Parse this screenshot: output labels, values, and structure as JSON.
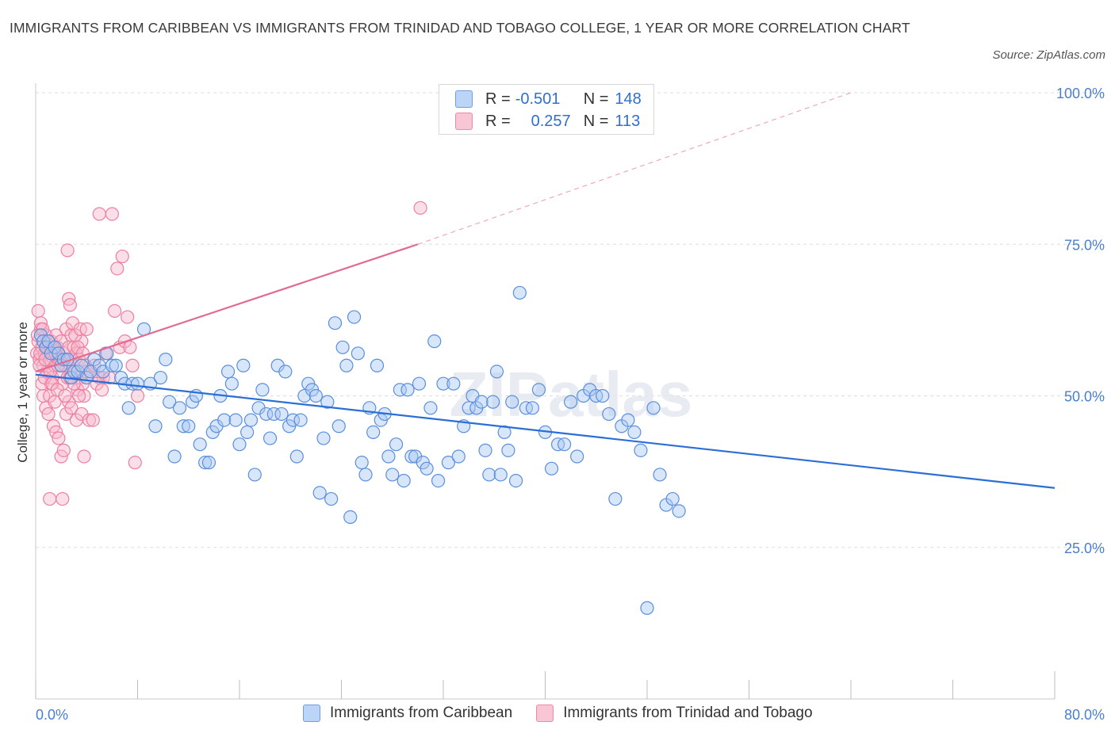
{
  "title": "IMMIGRANTS FROM CARIBBEAN VS IMMIGRANTS FROM TRINIDAD AND TOBAGO COLLEGE, 1 YEAR OR MORE CORRELATION CHART",
  "source": "Source: ZipAtlas.com",
  "watermark": "ZIPatlas",
  "legend": {
    "r_label": "R =",
    "n_label": "N =",
    "rows": [
      {
        "r": "-0.501",
        "n": "148",
        "fill": "#bcd4f6",
        "stroke": "#6c9ee6"
      },
      {
        "r": "0.257",
        "n": "113",
        "fill": "#f9c6d6",
        "stroke": "#ee8aa8"
      }
    ]
  },
  "colors": {
    "blue_fill": "#a9c8f2",
    "blue_stroke": "#5b8fdc",
    "blue_line": "#2a6fd6",
    "pink_fill": "#f7b8cb",
    "pink_stroke": "#ec7fa0",
    "pink_line": "#e36a93",
    "grid": "#dedede",
    "tick_label": "#4a7fd0"
  },
  "chart_data": {
    "type": "scatter",
    "title": "IMMIGRANTS FROM CARIBBEAN VS IMMIGRANTS FROM TRINIDAD AND TOBAGO COLLEGE, 1 YEAR OR MORE CORRELATION CHART",
    "xlabel": "",
    "ylabel": "College, 1 year or more",
    "xlim": [
      0,
      80
    ],
    "ylim": [
      0,
      100
    ],
    "x_tick_labels": [
      "0.0%",
      "80.0%"
    ],
    "y_tick_labels": [
      "100.0%",
      "75.0%",
      "50.0%",
      "25.0%"
    ],
    "y_ticks": [
      100,
      75,
      50,
      25
    ],
    "grid": true,
    "legend_position": "top-center",
    "series": [
      {
        "name": "Immigrants from Caribbean",
        "color": "blue",
        "R": -0.501,
        "N": 148,
        "trend": {
          "x": [
            0,
            80
          ],
          "y": [
            53.5,
            34.8
          ]
        },
        "points": [
          [
            0.4,
            60
          ],
          [
            0.6,
            59
          ],
          [
            0.8,
            58
          ],
          [
            1.0,
            59
          ],
          [
            1.2,
            57
          ],
          [
            1.5,
            58
          ],
          [
            1.8,
            57
          ],
          [
            2.0,
            55
          ],
          [
            2.2,
            56
          ],
          [
            2.5,
            56
          ],
          [
            2.8,
            53
          ],
          [
            3.0,
            54
          ],
          [
            3.3,
            54
          ],
          [
            3.6,
            55
          ],
          [
            4.0,
            53
          ],
          [
            4.3,
            54
          ],
          [
            4.6,
            56
          ],
          [
            5.0,
            55
          ],
          [
            5.3,
            54
          ],
          [
            5.6,
            57
          ],
          [
            6.0,
            55
          ],
          [
            6.3,
            55
          ],
          [
            6.7,
            53
          ],
          [
            7.0,
            52
          ],
          [
            7.3,
            48
          ],
          [
            7.6,
            52
          ],
          [
            8.0,
            52
          ],
          [
            8.5,
            61
          ],
          [
            9.0,
            52
          ],
          [
            9.4,
            45
          ],
          [
            9.8,
            53
          ],
          [
            10.2,
            56
          ],
          [
            10.5,
            49
          ],
          [
            10.9,
            40
          ],
          [
            11.3,
            48
          ],
          [
            11.6,
            45
          ],
          [
            12.0,
            45
          ],
          [
            12.3,
            49
          ],
          [
            12.6,
            50
          ],
          [
            12.9,
            42
          ],
          [
            13.3,
            39
          ],
          [
            13.6,
            39
          ],
          [
            13.9,
            44
          ],
          [
            14.2,
            45
          ],
          [
            14.5,
            50
          ],
          [
            14.8,
            46
          ],
          [
            15.1,
            54
          ],
          [
            15.4,
            52
          ],
          [
            15.7,
            46
          ],
          [
            16.0,
            42
          ],
          [
            16.3,
            55
          ],
          [
            16.6,
            44
          ],
          [
            16.9,
            46
          ],
          [
            17.2,
            37
          ],
          [
            17.5,
            48
          ],
          [
            17.8,
            51
          ],
          [
            18.1,
            47
          ],
          [
            18.4,
            43
          ],
          [
            18.7,
            47
          ],
          [
            19.0,
            55
          ],
          [
            19.3,
            47
          ],
          [
            19.6,
            54
          ],
          [
            19.9,
            45
          ],
          [
            20.2,
            46
          ],
          [
            20.5,
            40
          ],
          [
            20.8,
            46
          ],
          [
            21.1,
            50
          ],
          [
            21.4,
            52
          ],
          [
            21.7,
            51
          ],
          [
            22.0,
            50
          ],
          [
            22.3,
            34
          ],
          [
            22.6,
            43
          ],
          [
            22.9,
            49
          ],
          [
            23.2,
            33
          ],
          [
            23.5,
            62
          ],
          [
            23.8,
            45
          ],
          [
            24.1,
            58
          ],
          [
            24.4,
            55
          ],
          [
            24.7,
            30
          ],
          [
            25.0,
            63
          ],
          [
            25.3,
            57
          ],
          [
            25.6,
            39
          ],
          [
            25.9,
            37
          ],
          [
            26.2,
            48
          ],
          [
            26.5,
            44
          ],
          [
            26.8,
            55
          ],
          [
            27.1,
            46
          ],
          [
            27.4,
            47
          ],
          [
            27.7,
            40
          ],
          [
            28.0,
            37
          ],
          [
            28.3,
            42
          ],
          [
            28.6,
            51
          ],
          [
            28.9,
            36
          ],
          [
            29.2,
            51
          ],
          [
            29.5,
            40
          ],
          [
            29.8,
            40
          ],
          [
            30.1,
            52
          ],
          [
            30.4,
            39
          ],
          [
            30.7,
            38
          ],
          [
            31.0,
            48
          ],
          [
            31.3,
            59
          ],
          [
            31.6,
            36
          ],
          [
            32.0,
            52
          ],
          [
            32.4,
            39
          ],
          [
            32.8,
            52
          ],
          [
            33.2,
            40
          ],
          [
            33.6,
            45
          ],
          [
            34.0,
            48
          ],
          [
            34.3,
            50
          ],
          [
            34.6,
            48
          ],
          [
            35.0,
            49
          ],
          [
            35.3,
            41
          ],
          [
            35.6,
            37
          ],
          [
            35.9,
            49
          ],
          [
            36.2,
            54
          ],
          [
            36.5,
            37
          ],
          [
            36.8,
            44
          ],
          [
            37.1,
            41
          ],
          [
            37.4,
            49
          ],
          [
            37.7,
            36
          ],
          [
            38.0,
            67
          ],
          [
            38.5,
            48
          ],
          [
            39.0,
            48
          ],
          [
            39.5,
            51
          ],
          [
            40.0,
            44
          ],
          [
            40.5,
            38
          ],
          [
            41.0,
            42
          ],
          [
            41.5,
            42
          ],
          [
            42.0,
            49
          ],
          [
            42.5,
            40
          ],
          [
            43.0,
            50
          ],
          [
            43.5,
            51
          ],
          [
            44.0,
            50
          ],
          [
            44.5,
            50
          ],
          [
            45.0,
            47
          ],
          [
            45.5,
            33
          ],
          [
            46.0,
            45
          ],
          [
            46.5,
            46
          ],
          [
            47.0,
            44
          ],
          [
            47.5,
            41
          ],
          [
            48.0,
            15
          ],
          [
            48.5,
            48
          ],
          [
            49.0,
            37
          ],
          [
            49.5,
            32
          ],
          [
            50.0,
            33
          ],
          [
            50.5,
            31
          ]
        ]
      },
      {
        "name": "Immigrants from Trinidad and Tobago",
        "color": "pink",
        "R": 0.257,
        "N": 113,
        "trend": {
          "x": [
            0,
            30
          ],
          "y": [
            54,
            75
          ]
        },
        "trend_extension": {
          "x": [
            30,
            64
          ],
          "y": [
            75,
            100
          ]
        },
        "points": [
          [
            0.1,
            57
          ],
          [
            0.2,
            59
          ],
          [
            0.3,
            56
          ],
          [
            0.4,
            61
          ],
          [
            0.5,
            58
          ],
          [
            0.6,
            55
          ],
          [
            0.7,
            57
          ],
          [
            0.8,
            60
          ],
          [
            0.9,
            54
          ],
          [
            1.0,
            58
          ],
          [
            1.1,
            56
          ],
          [
            1.2,
            59
          ],
          [
            1.3,
            53
          ],
          [
            1.4,
            57
          ],
          [
            1.5,
            55
          ],
          [
            1.6,
            60
          ],
          [
            1.7,
            58
          ],
          [
            1.8,
            56
          ],
          [
            1.9,
            54
          ],
          [
            2.0,
            59
          ],
          [
            2.1,
            52
          ],
          [
            2.2,
            57
          ],
          [
            2.3,
            55
          ],
          [
            2.4,
            61
          ],
          [
            2.5,
            53
          ],
          [
            2.6,
            58
          ],
          [
            2.7,
            56
          ],
          [
            2.8,
            60
          ],
          [
            2.9,
            55
          ],
          [
            3.0,
            58
          ],
          [
            3.1,
            54
          ],
          [
            3.2,
            57
          ],
          [
            3.3,
            51
          ],
          [
            3.4,
            56
          ],
          [
            3.5,
            53
          ],
          [
            3.6,
            59
          ],
          [
            3.7,
            52
          ],
          [
            3.8,
            50
          ],
          [
            3.9,
            55
          ],
          [
            4.0,
            54
          ],
          [
            0.2,
            64
          ],
          [
            0.4,
            62
          ],
          [
            0.6,
            50
          ],
          [
            0.8,
            48
          ],
          [
            1.0,
            47
          ],
          [
            1.2,
            52
          ],
          [
            1.4,
            45
          ],
          [
            1.6,
            44
          ],
          [
            1.8,
            43
          ],
          [
            2.0,
            40
          ],
          [
            2.2,
            41
          ],
          [
            2.4,
            47
          ],
          [
            2.6,
            49
          ],
          [
            2.8,
            48
          ],
          [
            3.0,
            52
          ],
          [
            3.2,
            46
          ],
          [
            3.4,
            50
          ],
          [
            3.6,
            47
          ],
          [
            3.8,
            40
          ],
          [
            1.1,
            33
          ],
          [
            2.1,
            33
          ],
          [
            2.5,
            74
          ],
          [
            2.6,
            66
          ],
          [
            2.7,
            65
          ],
          [
            2.9,
            62
          ],
          [
            3.1,
            60
          ],
          [
            3.3,
            58
          ],
          [
            3.5,
            61
          ],
          [
            3.7,
            57
          ],
          [
            4.0,
            61
          ],
          [
            4.3,
            54
          ],
          [
            4.6,
            55
          ],
          [
            5.0,
            53
          ],
          [
            5.3,
            53
          ],
          [
            5.0,
            80
          ],
          [
            6.0,
            80
          ],
          [
            6.2,
            64
          ],
          [
            6.4,
            71
          ],
          [
            6.6,
            58
          ],
          [
            6.8,
            73
          ],
          [
            7.0,
            59
          ],
          [
            7.2,
            63
          ],
          [
            7.4,
            58
          ],
          [
            7.6,
            55
          ],
          [
            7.8,
            39
          ],
          [
            8.0,
            50
          ],
          [
            4.2,
            46
          ],
          [
            4.5,
            46
          ],
          [
            4.8,
            52
          ],
          [
            5.2,
            51
          ],
          [
            5.5,
            57
          ],
          [
            5.8,
            53
          ],
          [
            0.3,
            55
          ],
          [
            0.5,
            52
          ],
          [
            0.7,
            53
          ],
          [
            0.9,
            58
          ],
          [
            1.1,
            50
          ],
          [
            1.3,
            52
          ],
          [
            1.5,
            49
          ],
          [
            1.7,
            51
          ],
          [
            1.9,
            56
          ],
          [
            2.3,
            50
          ],
          [
            2.7,
            53
          ],
          [
            0.15,
            60
          ],
          [
            0.35,
            57
          ],
          [
            0.55,
            61
          ],
          [
            0.75,
            56
          ],
          [
            0.95,
            59
          ],
          [
            1.15,
            54
          ],
          [
            1.35,
            58
          ],
          [
            1.55,
            57
          ],
          [
            1.75,
            55
          ],
          [
            30.2,
            81
          ]
        ]
      }
    ]
  },
  "bottom_legend": [
    "Immigrants from Caribbean",
    "Immigrants from Trinidad and Tobago"
  ]
}
